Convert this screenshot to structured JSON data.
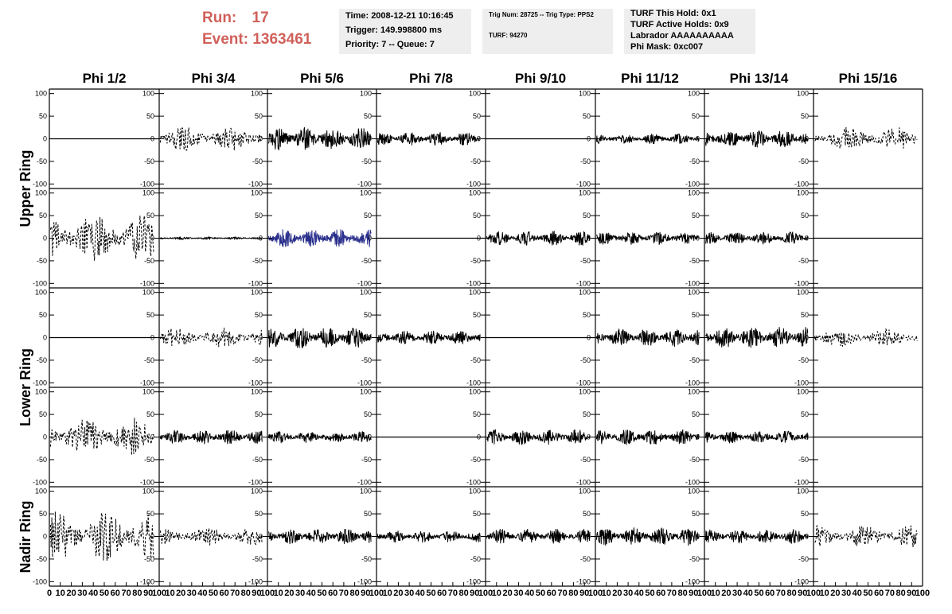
{
  "header": {
    "run_label": "Run:",
    "run_value": "17",
    "event_label": "Event:",
    "event_value": "1363461",
    "time_line": "Time: 2008-12-21 10:16:45",
    "trigger_line": "Trigger: 149.998800 ms",
    "priority_line": "Priority: 7 -- Queue: 7",
    "trig_num_line": "Trig Num: 28725 -- Trig Type: PPS2",
    "turf_line": "TURF: 94270",
    "turf_hold_line": "TURF This Hold: 0x1",
    "turf_active_line": "TURF Active Holds: 0x9",
    "labrador_line": "Labrador AAAAAAAAAA",
    "phi_mask_line": "Phi Mask: 0xc007",
    "accent_color": "#d0605a",
    "box_color": "#eeeeee"
  },
  "chart_data": {
    "type": "line",
    "columns": [
      "Phi 1/2",
      "Phi 3/4",
      "Phi 5/6",
      "Phi 7/8",
      "Phi 9/10",
      "Phi 11/12",
      "Phi 13/14",
      "Phi 15/16"
    ],
    "rows": [
      "Upper Ring",
      "Lower Ring",
      "Nadir Ring"
    ],
    "ylim": [
      -110,
      110
    ],
    "yticks": [
      -100,
      -50,
      0,
      50,
      100
    ],
    "xlim": [
      0,
      100
    ],
    "xticks": [
      0,
      10,
      20,
      30,
      40,
      50,
      60,
      70,
      80,
      90,
      100
    ],
    "trace_colors": {
      "normal": "#000000",
      "highlight": "#2a2f8c"
    },
    "panels": [
      {
        "row": 0,
        "col": 0,
        "style": "flat"
      },
      {
        "row": 0,
        "col": 1,
        "style": "dashed",
        "amp": 28,
        "end": 95,
        "seed": 11
      },
      {
        "row": 0,
        "col": 2,
        "style": "solid",
        "amp": 26,
        "end": 95,
        "seed": 12
      },
      {
        "row": 0,
        "col": 3,
        "style": "solid",
        "amp": 15,
        "end": 95,
        "seed": 13
      },
      {
        "row": 0,
        "col": 4,
        "style": "flat"
      },
      {
        "row": 0,
        "col": 5,
        "style": "solid",
        "amp": 11,
        "end": 95,
        "seed": 14
      },
      {
        "row": 0,
        "col": 6,
        "style": "solid",
        "amp": 20,
        "end": 95,
        "seed": 15
      },
      {
        "row": 0,
        "col": 7,
        "style": "dashed",
        "amp": 26,
        "end": 95,
        "seed": 16
      },
      {
        "row": 1,
        "col": 0,
        "style": "dashed",
        "amp": 52,
        "end": 95,
        "seed": 21
      },
      {
        "row": 1,
        "col": 1,
        "style": "solid",
        "amp": 3,
        "end": 95,
        "seed": 22
      },
      {
        "row": 1,
        "col": 2,
        "style": "solid",
        "amp": 20,
        "end": 95,
        "seed": 23,
        "highlight": true
      },
      {
        "row": 1,
        "col": 3,
        "style": "flat"
      },
      {
        "row": 1,
        "col": 4,
        "style": "solid",
        "amp": 16,
        "end": 95,
        "seed": 24
      },
      {
        "row": 1,
        "col": 5,
        "style": "solid",
        "amp": 14,
        "end": 95,
        "seed": 25
      },
      {
        "row": 1,
        "col": 6,
        "style": "solid",
        "amp": 14,
        "end": 95,
        "seed": 26
      },
      {
        "row": 1,
        "col": 7,
        "style": "flat"
      },
      {
        "row": 2,
        "col": 0,
        "style": "flat"
      },
      {
        "row": 2,
        "col": 1,
        "style": "dashed",
        "amp": 22,
        "end": 95,
        "seed": 31
      },
      {
        "row": 2,
        "col": 2,
        "style": "solid",
        "amp": 24,
        "end": 95,
        "seed": 32
      },
      {
        "row": 2,
        "col": 3,
        "style": "solid",
        "amp": 15,
        "end": 95,
        "seed": 33
      },
      {
        "row": 2,
        "col": 4,
        "style": "flat"
      },
      {
        "row": 2,
        "col": 5,
        "style": "solid",
        "amp": 20,
        "end": 95,
        "seed": 34
      },
      {
        "row": 2,
        "col": 6,
        "style": "solid",
        "amp": 24,
        "end": 95,
        "seed": 35
      },
      {
        "row": 2,
        "col": 7,
        "style": "dashed",
        "amp": 20,
        "end": 95,
        "seed": 36
      },
      {
        "row": 3,
        "col": 0,
        "style": "dashed",
        "amp": 42,
        "end": 95,
        "seed": 41
      },
      {
        "row": 3,
        "col": 1,
        "style": "solid",
        "amp": 16,
        "end": 95,
        "seed": 42
      },
      {
        "row": 3,
        "col": 2,
        "style": "solid",
        "amp": 13,
        "end": 95,
        "seed": 43
      },
      {
        "row": 3,
        "col": 3,
        "style": "flat"
      },
      {
        "row": 3,
        "col": 4,
        "style": "solid",
        "amp": 17,
        "end": 95,
        "seed": 44
      },
      {
        "row": 3,
        "col": 5,
        "style": "solid",
        "amp": 17,
        "end": 95,
        "seed": 45
      },
      {
        "row": 3,
        "col": 6,
        "style": "solid",
        "amp": 14,
        "end": 95,
        "seed": 46
      },
      {
        "row": 3,
        "col": 7,
        "style": "flat"
      },
      {
        "row": 4,
        "col": 0,
        "style": "dashed",
        "amp": 55,
        "end": 95,
        "seed": 51
      },
      {
        "row": 4,
        "col": 1,
        "style": "dashed",
        "amp": 20,
        "end": 95,
        "seed": 52
      },
      {
        "row": 4,
        "col": 2,
        "style": "solid",
        "amp": 17,
        "end": 95,
        "seed": 53
      },
      {
        "row": 4,
        "col": 3,
        "style": "solid",
        "amp": 13,
        "end": 95,
        "seed": 54
      },
      {
        "row": 4,
        "col": 4,
        "style": "solid",
        "amp": 16,
        "end": 95,
        "seed": 55
      },
      {
        "row": 4,
        "col": 5,
        "style": "solid",
        "amp": 20,
        "end": 95,
        "seed": 56
      },
      {
        "row": 4,
        "col": 6,
        "style": "solid",
        "amp": 16,
        "end": 95,
        "seed": 57
      },
      {
        "row": 4,
        "col": 7,
        "style": "dashed",
        "amp": 24,
        "end": 95,
        "seed": 58
      }
    ]
  }
}
